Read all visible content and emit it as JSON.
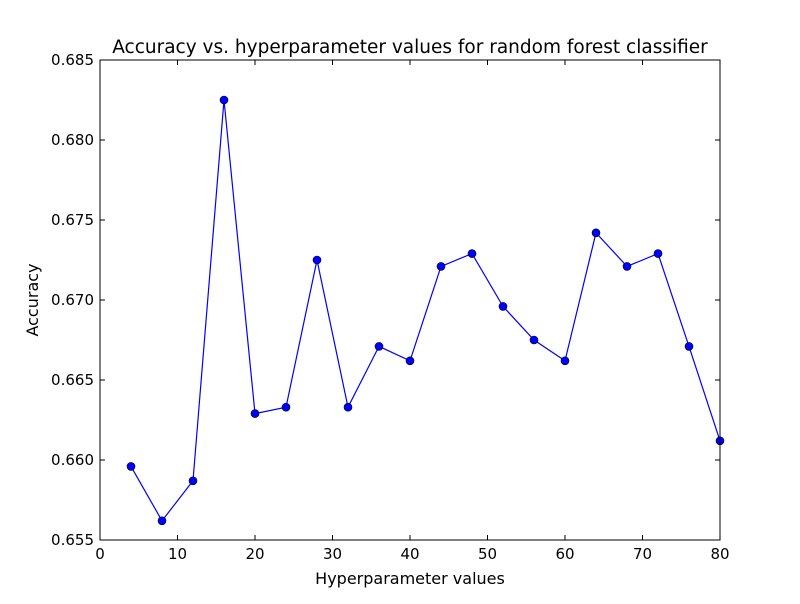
{
  "chart_data": {
    "type": "line",
    "title": "Accuracy vs. hyperparameter values for random forest classifier",
    "xlabel": "Hyperparameter values",
    "ylabel": "Accuracy",
    "xlim": [
      0,
      80
    ],
    "ylim": [
      0.655,
      0.685
    ],
    "xticks": [
      "0",
      "10",
      "20",
      "30",
      "40",
      "50",
      "60",
      "70",
      "80"
    ],
    "yticks": [
      "0.655",
      "0.660",
      "0.665",
      "0.670",
      "0.675",
      "0.680",
      "0.685"
    ],
    "grid": false,
    "legend": "none",
    "series": [
      {
        "color": "#0000ff",
        "marker": "circle",
        "x": [
          4,
          8,
          12,
          16,
          20,
          24,
          28,
          32,
          36,
          40,
          44,
          48,
          52,
          56,
          60,
          64,
          68,
          72,
          76,
          80
        ],
        "y": [
          0.6596,
          0.6562,
          0.6587,
          0.6825,
          0.6629,
          0.6633,
          0.6725,
          0.6633,
          0.6671,
          0.6662,
          0.6721,
          0.6729,
          0.6696,
          0.6675,
          0.6662,
          0.6742,
          0.6721,
          0.6729,
          0.6671,
          0.6612
        ]
      }
    ]
  }
}
